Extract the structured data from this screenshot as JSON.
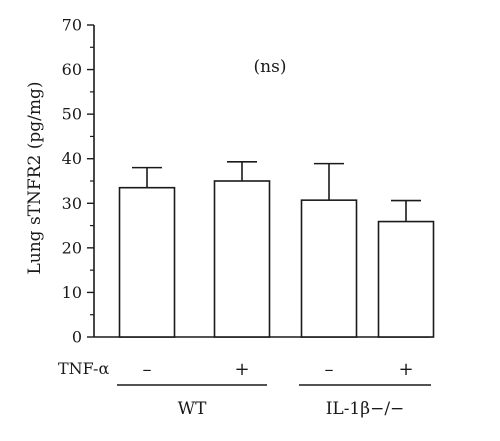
{
  "chart_data": {
    "type": "bar",
    "title": "",
    "ylabel": "Lung sTNFR2 (pg/mg)",
    "xlabel": "",
    "ylim": [
      0,
      70
    ],
    "ytick_step": 10,
    "yticks": [
      "0",
      "10",
      "20",
      "30",
      "40",
      "50",
      "60",
      "70"
    ],
    "annotation": "(ns)",
    "bars": [
      {
        "group": "WT",
        "treatment": "–",
        "value": 33.5,
        "error": 4.5
      },
      {
        "group": "WT",
        "treatment": "+",
        "value": 35.0,
        "error": 4.3
      },
      {
        "group": "IL-1β−/−",
        "treatment": "–",
        "value": 30.7,
        "error": 8.2
      },
      {
        "group": "IL-1β−/−",
        "treatment": "+",
        "value": 25.9,
        "error": 4.7
      }
    ],
    "treatment_row_label": "TNF-α",
    "groups": [
      {
        "label": "WT",
        "bars": [
          0,
          1
        ]
      },
      {
        "label": "IL-1β−/−",
        "bars": [
          2,
          3
        ]
      }
    ],
    "bar_fill": "#ffffff",
    "bar_stroke": "#1a1a1a"
  }
}
